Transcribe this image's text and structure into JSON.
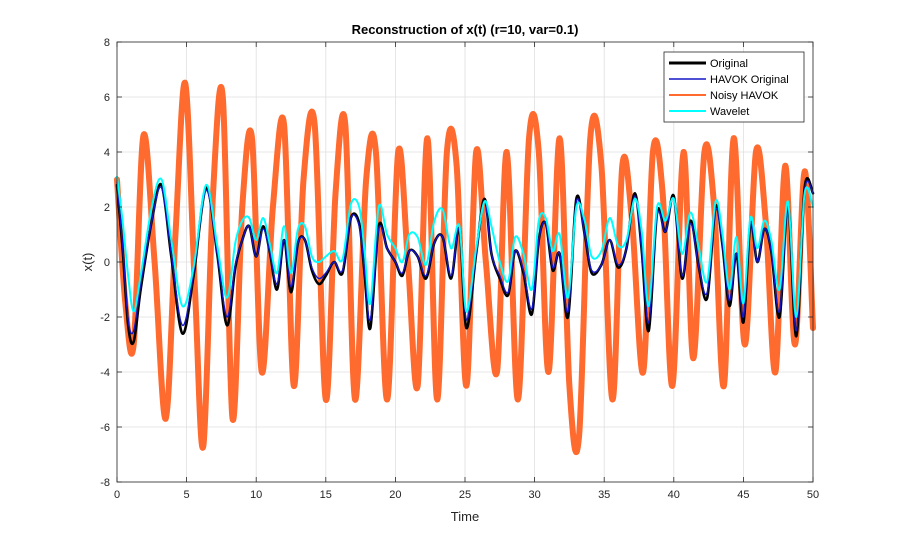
{
  "chart_data": {
    "type": "line",
    "title": "Reconstruction of x(t) (r=10, var=0.1)",
    "xlabel": "Time",
    "ylabel": "x(t)",
    "xlim": [
      0,
      50
    ],
    "ylim": [
      -8,
      8
    ],
    "xticks": [
      0,
      5,
      10,
      15,
      20,
      25,
      30,
      35,
      40,
      45,
      50
    ],
    "yticks": [
      -8,
      -6,
      -4,
      -2,
      0,
      2,
      4,
      6,
      8
    ],
    "grid": true,
    "legend_position": "top-right",
    "series": [
      {
        "name": "Original",
        "color": "#000000",
        "x": [
          0,
          0.4,
          0.8,
          1.2,
          1.7,
          2.5,
          3.2,
          3.9,
          4.7,
          5.5,
          6.4,
          7.2,
          7.9,
          8.5,
          9.0,
          9.5,
          10.0,
          10.5,
          11.0,
          11.5,
          12.0,
          12.5,
          13.0,
          13.5,
          14.0,
          14.5,
          15.0,
          15.6,
          16.2,
          16.8,
          17.4,
          17.8,
          18.2,
          18.8,
          19.4,
          20.0,
          20.5,
          21.0,
          21.6,
          22.2,
          22.8,
          23.4,
          24.0,
          24.6,
          25.1,
          25.8,
          26.4,
          26.9,
          27.5,
          28.1,
          28.6,
          29.2,
          29.8,
          30.3,
          30.8,
          31.3,
          31.8,
          32.4,
          33.0,
          33.6,
          34.1,
          34.8,
          35.4,
          36.0,
          36.6,
          37.2,
          37.7,
          38.2,
          38.8,
          39.4,
          40.0,
          40.6,
          41.2,
          41.8,
          42.4,
          43.0,
          43.5,
          44.0,
          44.5,
          45.0,
          45.5,
          46.0,
          46.5,
          47.0,
          47.6,
          48.2,
          48.8,
          49.4,
          50.0
        ],
        "y": [
          2.8,
          0.5,
          -2.3,
          -2.9,
          -1.0,
          1.5,
          2.8,
          0.2,
          -2.6,
          -0.5,
          2.7,
          0.3,
          -2.3,
          -0.2,
          0.8,
          1.3,
          0.2,
          1.3,
          0.3,
          -1.0,
          0.8,
          -1.1,
          0.7,
          0.8,
          -0.3,
          -0.8,
          -0.5,
          0.0,
          -0.4,
          1.6,
          1.4,
          -0.5,
          -2.4,
          1.3,
          0.5,
          0.0,
          -0.5,
          0.4,
          0.2,
          -0.6,
          0.7,
          0.9,
          -0.6,
          1.2,
          -2.4,
          0.3,
          2.3,
          0.3,
          -0.6,
          -1.2,
          0.4,
          -0.4,
          -1.9,
          0.8,
          1.4,
          -0.3,
          0.3,
          -2.0,
          2.3,
          1.0,
          -0.4,
          -0.1,
          0.8,
          -0.2,
          0.5,
          2.5,
          0.4,
          -2.5,
          1.8,
          1.1,
          2.4,
          -0.6,
          1.5,
          -0.2,
          -1.3,
          2.0,
          0.6,
          -1.6,
          0.3,
          -2.2,
          1.4,
          0.0,
          1.2,
          0.4,
          -2.0,
          2.1,
          -2.7,
          2.7,
          2.5
        ]
      },
      {
        "name": "HAVOK Original",
        "color": "#1515c8",
        "x": [
          0,
          0.4,
          0.8,
          1.2,
          1.7,
          2.5,
          3.2,
          3.9,
          4.7,
          5.5,
          6.4,
          7.2,
          7.9,
          8.5,
          9.0,
          9.5,
          10.0,
          10.5,
          11.0,
          11.5,
          12.0,
          12.5,
          13.0,
          13.5,
          14.0,
          14.5,
          15.0,
          15.6,
          16.2,
          16.8,
          17.4,
          17.8,
          18.2,
          18.8,
          19.4,
          20.0,
          20.5,
          21.0,
          21.6,
          22.2,
          22.8,
          23.4,
          24.0,
          24.6,
          25.1,
          25.8,
          26.4,
          26.9,
          27.5,
          28.1,
          28.6,
          29.2,
          29.8,
          30.3,
          30.8,
          31.3,
          31.8,
          32.4,
          33.0,
          33.6,
          34.1,
          34.8,
          35.4,
          36.0,
          36.6,
          37.2,
          37.7,
          38.2,
          38.8,
          39.4,
          40.0,
          40.6,
          41.2,
          41.8,
          42.4,
          43.0,
          43.5,
          44.0,
          44.5,
          45.0,
          45.5,
          46.0,
          46.5,
          47.0,
          47.6,
          48.2,
          48.8,
          49.4,
          50.0
        ],
        "y": [
          2.9,
          0.6,
          -2.1,
          -2.5,
          -0.8,
          1.5,
          2.7,
          0.3,
          -2.3,
          -0.4,
          2.6,
          0.3,
          -2.0,
          -0.1,
          0.8,
          1.3,
          0.2,
          1.2,
          0.3,
          -0.8,
          0.8,
          -0.9,
          0.7,
          0.8,
          -0.2,
          -0.6,
          -0.4,
          0.0,
          -0.3,
          1.6,
          1.3,
          -0.4,
          -2.1,
          1.2,
          0.5,
          0.0,
          -0.4,
          0.4,
          0.2,
          -0.5,
          0.7,
          0.9,
          -0.5,
          1.2,
          -2.1,
          0.3,
          2.2,
          0.3,
          -0.5,
          -1.1,
          0.4,
          -0.3,
          -1.7,
          0.8,
          1.4,
          -0.2,
          0.3,
          -1.8,
          2.2,
          1.0,
          -0.3,
          -0.1,
          0.8,
          -0.1,
          0.5,
          2.4,
          0.4,
          -2.2,
          1.7,
          1.1,
          2.3,
          -0.5,
          1.4,
          -0.2,
          -1.1,
          1.9,
          0.6,
          -1.4,
          0.3,
          -2.0,
          1.4,
          0.0,
          1.2,
          0.4,
          -1.8,
          2.0,
          -2.5,
          2.6,
          2.5
        ]
      },
      {
        "name": "Noisy HAVOK",
        "color": "#ff6a2e",
        "x": [
          0,
          0.6,
          1.2,
          1.9,
          2.7,
          3.5,
          4.2,
          4.9,
          5.6,
          6.2,
          6.9,
          7.6,
          8.3,
          9.0,
          9.7,
          10.4,
          11.2,
          12.0,
          12.7,
          13.4,
          14.2,
          15.0,
          15.7,
          16.4,
          17.1,
          17.9,
          18.6,
          19.4,
          20.2,
          20.9,
          21.6,
          22.3,
          23.0,
          23.7,
          24.4,
          25.1,
          25.8,
          26.5,
          27.3,
          28.0,
          28.8,
          29.6,
          30.3,
          31.0,
          31.8,
          32.5,
          33.2,
          34.0,
          34.8,
          35.6,
          36.3,
          37.0,
          37.8,
          38.5,
          39.2,
          39.9,
          40.7,
          41.4,
          42.2,
          42.9,
          43.6,
          44.3,
          45.1,
          45.9,
          46.6,
          47.3,
          48.0,
          48.7,
          49.4,
          50.0
        ],
        "y": [
          3.0,
          -1.5,
          -3.0,
          4.6,
          0.0,
          -5.7,
          1.0,
          6.5,
          -1.0,
          -6.7,
          2.5,
          6.0,
          -5.7,
          2.0,
          4.5,
          -4.0,
          2.0,
          5.0,
          -4.5,
          3.0,
          5.0,
          -5.0,
          2.5,
          5.0,
          -5.0,
          3.0,
          4.0,
          -5.0,
          4.0,
          0.0,
          -4.5,
          4.5,
          -5.0,
          4.0,
          3.5,
          -4.5,
          4.0,
          0.0,
          -4.0,
          4.0,
          -5.0,
          4.5,
          4.0,
          -4.0,
          4.5,
          -4.5,
          -6.3,
          4.5,
          3.5,
          -5.0,
          3.5,
          1.5,
          -4.0,
          4.0,
          2.5,
          -4.5,
          4.0,
          -3.5,
          4.0,
          2.0,
          -4.5,
          4.5,
          -3.0,
          4.0,
          1.5,
          -4.0,
          3.5,
          -3.0,
          3.3,
          -2.4
        ]
      },
      {
        "name": "Wavelet",
        "color": "#00ffff",
        "x": [
          0,
          0.4,
          0.8,
          1.2,
          1.7,
          2.5,
          3.2,
          3.9,
          4.7,
          5.5,
          6.4,
          7.2,
          7.9,
          8.5,
          9.0,
          9.5,
          10.0,
          10.5,
          11.0,
          11.5,
          12.0,
          12.5,
          13.0,
          13.5,
          14.0,
          14.5,
          15.0,
          15.6,
          16.2,
          16.8,
          17.4,
          17.8,
          18.2,
          18.8,
          19.4,
          20.0,
          20.5,
          21.0,
          21.6,
          22.2,
          22.8,
          23.4,
          24.0,
          24.6,
          25.1,
          25.8,
          26.4,
          26.9,
          27.5,
          28.1,
          28.6,
          29.2,
          29.8,
          30.3,
          30.8,
          31.3,
          31.8,
          32.4,
          33.0,
          33.6,
          34.1,
          34.8,
          35.4,
          36.0,
          36.6,
          37.2,
          37.7,
          38.2,
          38.8,
          39.4,
          40.0,
          40.6,
          41.2,
          41.8,
          42.4,
          43.0,
          43.5,
          44.0,
          44.5,
          45.0,
          45.5,
          46.0,
          46.5,
          47.0,
          47.6,
          48.2,
          48.8,
          49.4,
          50.0
        ],
        "y": [
          3.1,
          1.5,
          -0.5,
          -1.8,
          -0.5,
          2.0,
          3.0,
          0.8,
          -1.6,
          -0.2,
          2.8,
          0.6,
          -1.3,
          0.7,
          1.5,
          1.6,
          0.8,
          1.6,
          0.6,
          -0.4,
          1.3,
          -0.4,
          1.2,
          1.3,
          0.2,
          0.0,
          0.2,
          0.4,
          0.1,
          2.1,
          2.0,
          0.3,
          -1.5,
          2.0,
          1.0,
          0.5,
          0.0,
          1.0,
          0.9,
          -0.1,
          1.5,
          1.9,
          0.5,
          1.3,
          -1.8,
          0.5,
          2.2,
          1.3,
          0.0,
          -0.7,
          0.9,
          0.3,
          -1.0,
          1.5,
          1.6,
          0.4,
          1.0,
          -1.3,
          2.0,
          1.5,
          0.2,
          0.4,
          1.6,
          0.6,
          0.8,
          2.3,
          1.1,
          -1.6,
          2.0,
          1.5,
          2.3,
          0.3,
          1.8,
          0.5,
          -0.7,
          2.2,
          1.0,
          -1.0,
          0.9,
          -1.5,
          1.6,
          0.5,
          1.5,
          0.8,
          -1.0,
          2.2,
          -2.0,
          2.5,
          2.0
        ]
      }
    ]
  }
}
